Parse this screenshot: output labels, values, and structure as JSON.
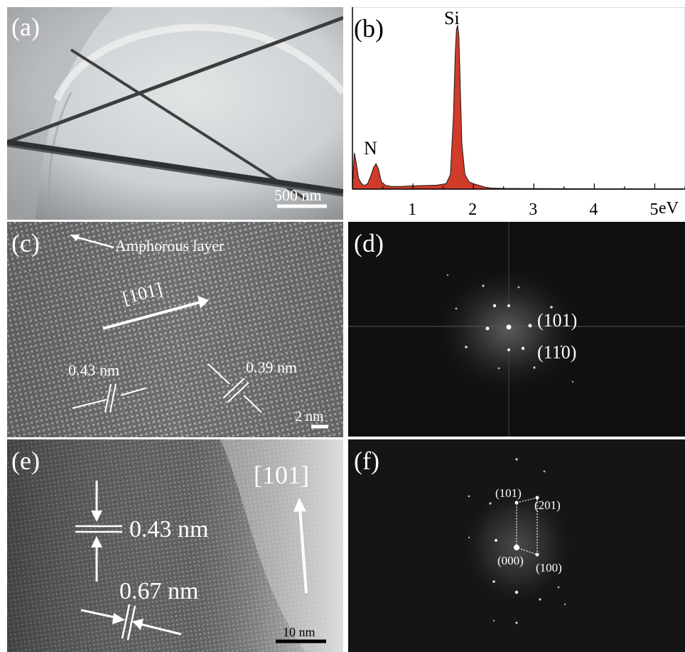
{
  "panels": {
    "a": {
      "label": "(a)",
      "scale_label": "500 nm"
    },
    "b": {
      "label": "(b)",
      "chart_data": {
        "type": "area",
        "title": "",
        "xlabel": "eV",
        "ylabel": "",
        "xlim": [
          0.0,
          5.5
        ],
        "ylim": [
          0,
          100
        ],
        "x_ticks": [
          "1",
          "2",
          "3",
          "4",
          "5"
        ],
        "peaks": [
          {
            "name": "N",
            "x": 0.39,
            "y": 14
          },
          {
            "name": "Si",
            "x": 1.74,
            "y": 90
          }
        ],
        "series": [
          {
            "x": [
              0.0,
              0.03,
              0.06,
              0.1,
              0.15,
              0.2,
              0.25,
              0.3,
              0.35,
              0.39,
              0.43,
              0.48,
              0.55,
              0.65,
              0.8,
              1.0,
              1.2,
              1.4,
              1.55,
              1.62,
              1.67,
              1.7,
              1.72,
              1.74,
              1.76,
              1.78,
              1.81,
              1.86,
              1.93,
              2.0,
              2.1,
              2.2,
              2.3,
              2.5,
              3.0,
              4.0,
              5.0,
              5.5
            ],
            "y": [
              1,
              20,
              15,
              6,
              3,
              2,
              3,
              7,
              12,
              14,
              11,
              4,
              2,
              1.5,
              1.5,
              1.8,
              2,
              2.2,
              3,
              8,
              40,
              75,
              88,
              90,
              84,
              60,
              25,
              8,
              4,
              3,
              2,
              1,
              0.6,
              0.4,
              0.3,
              0.2,
              0.2,
              0.2
            ],
            "color": "#d13b2a"
          }
        ]
      }
    },
    "c": {
      "label": "(c)",
      "layer_label": "Amphorous layer",
      "direction_label": "[101]",
      "spacing_1": "0.43 nm",
      "spacing_2": "0.39 nm",
      "scale_label": "2 nm"
    },
    "d": {
      "label": "(d)",
      "spot_1": "(101)",
      "spot_2": "(110)"
    },
    "e": {
      "label": "(e)",
      "direction_label": "[101]",
      "spacing_1": "0.43 nm",
      "spacing_2": "0.67 nm",
      "scale_label": "10 nm"
    },
    "f": {
      "label": "(f)",
      "spot_101": "(101)",
      "spot_201": "(201)",
      "spot_000": "(000)",
      "spot_100": "(100)"
    }
  }
}
